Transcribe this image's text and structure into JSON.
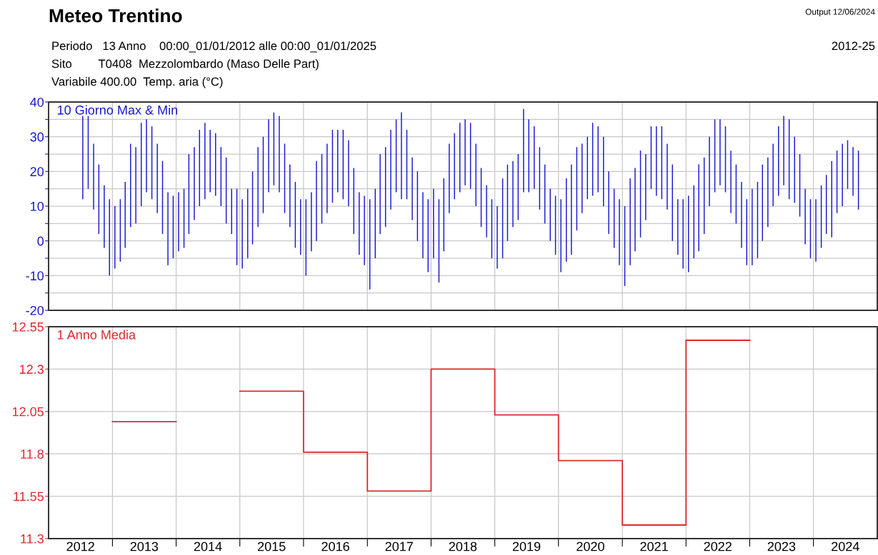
{
  "chart_data": [
    {
      "type": "bar",
      "title": "Meteo Trentino",
      "annotations": [
        "Output 12/06/2024",
        "2012-25",
        "Periodo   13 Anno    00:00_01/01/2012 alle 00:00_01/01/2025",
        "Sito        T0408  Mezzolombardo (Maso Delle Part)",
        "Variabile 400.00  Temp. aria (°C)"
      ],
      "x": [
        "2012-07-15",
        "2012-08-15",
        "2012-09-15",
        "2012-10-15",
        "2012-11-15",
        "2012-12-15",
        "2013-01-15",
        "2013-02-15",
        "2013-03-15",
        "2013-04-15",
        "2013-05-15",
        "2013-06-15",
        "2013-07-15",
        "2013-08-15",
        "2013-09-15",
        "2013-10-15",
        "2013-11-15",
        "2013-12-15",
        "2014-01-15",
        "2014-02-15",
        "2014-03-15",
        "2014-04-15",
        "2014-05-15",
        "2014-06-15",
        "2014-07-15",
        "2014-08-15",
        "2014-09-15",
        "2014-10-15",
        "2014-11-15",
        "2014-12-15",
        "2015-01-15",
        "2015-02-15",
        "2015-03-15",
        "2015-04-15",
        "2015-05-15",
        "2015-06-15",
        "2015-07-15",
        "2015-08-15",
        "2015-09-15",
        "2015-10-15",
        "2015-11-15",
        "2015-12-15",
        "2016-01-15",
        "2016-02-15",
        "2016-03-15",
        "2016-04-15",
        "2016-05-15",
        "2016-06-15",
        "2016-07-15",
        "2016-08-15",
        "2016-09-15",
        "2016-10-15",
        "2016-11-15",
        "2016-12-15",
        "2017-01-15",
        "2017-02-15",
        "2017-03-15",
        "2017-04-15",
        "2017-05-15",
        "2017-06-15",
        "2017-07-15",
        "2017-08-15",
        "2017-09-15",
        "2017-10-15",
        "2017-11-15",
        "2017-12-15",
        "2018-01-15",
        "2018-02-15",
        "2018-03-15",
        "2018-04-15",
        "2018-05-15",
        "2018-06-15",
        "2018-07-15",
        "2018-08-15",
        "2018-09-15",
        "2018-10-15",
        "2018-11-15",
        "2018-12-15",
        "2019-01-15",
        "2019-02-15",
        "2019-03-15",
        "2019-04-15",
        "2019-05-15",
        "2019-06-15",
        "2019-07-15",
        "2019-08-15",
        "2019-09-15",
        "2019-10-15",
        "2019-11-15",
        "2019-12-15",
        "2020-01-15",
        "2020-02-15",
        "2020-03-15",
        "2020-04-15",
        "2020-05-15",
        "2020-06-15",
        "2020-07-15",
        "2020-08-15",
        "2020-09-15",
        "2020-10-15",
        "2020-11-15",
        "2020-12-15",
        "2021-01-15",
        "2021-02-15",
        "2021-03-15",
        "2021-04-15",
        "2021-05-15",
        "2021-06-15",
        "2021-07-15",
        "2021-08-15",
        "2021-09-15",
        "2021-10-15",
        "2021-11-15",
        "2021-12-15",
        "2022-01-15",
        "2022-02-15",
        "2022-03-15",
        "2022-04-15",
        "2022-05-15",
        "2022-06-15",
        "2022-07-15",
        "2022-08-15",
        "2022-09-15",
        "2022-10-15",
        "2022-11-15",
        "2022-12-15",
        "2023-01-15",
        "2023-02-15",
        "2023-03-15",
        "2023-04-15",
        "2023-05-15",
        "2023-06-15",
        "2023-07-15",
        "2023-08-15",
        "2023-09-15",
        "2023-10-15",
        "2023-11-15",
        "2023-12-15",
        "2024-01-15",
        "2024-02-15",
        "2024-03-15",
        "2024-04-15",
        "2024-05-15",
        "2024-06-15",
        "2024-07-15",
        "2024-08-15",
        "2024-09-15"
      ],
      "series": [
        {
          "name": "10 Giorno Max & Min",
          "color": "#1a1ad0",
          "base": [
            12,
            15,
            9,
            2,
            -2,
            -10,
            -8,
            -6,
            -2,
            4,
            5,
            10,
            14,
            12,
            8,
            2,
            -7,
            -5,
            -3,
            -2,
            2,
            6,
            10,
            12,
            14,
            13,
            10,
            5,
            2,
            -7,
            -8,
            -5,
            -1,
            4,
            8,
            14,
            16,
            14,
            8,
            4,
            -2,
            -4,
            -10,
            -3,
            0,
            5,
            8,
            11,
            14,
            12,
            10,
            2,
            -4,
            -7,
            -14,
            -5,
            2,
            4,
            9,
            14,
            12,
            12,
            6,
            0,
            -5,
            -9,
            -5,
            -12,
            -3,
            8,
            12,
            14,
            16,
            15,
            10,
            4,
            1,
            -5,
            -8,
            -5,
            0,
            4,
            6,
            14,
            14,
            15,
            9,
            5,
            0,
            -4,
            -9,
            -6,
            -4,
            3,
            8,
            12,
            13,
            14,
            10,
            2,
            -2,
            -7,
            -13,
            -7,
            -3,
            1,
            6,
            15,
            13,
            12,
            9,
            0,
            -4,
            -8,
            -9,
            -5,
            -3,
            2,
            10,
            14,
            16,
            14,
            8,
            5,
            -2,
            -7,
            -7,
            -5,
            0,
            4,
            10,
            13,
            16,
            12,
            11,
            7,
            -1,
            -5,
            -6,
            -2,
            2,
            1,
            8,
            10,
            15,
            13,
            9
          ],
          "values": [
            24,
            21,
            19,
            20,
            18,
            22,
            18,
            18,
            19,
            24,
            22,
            24,
            21,
            21,
            20,
            21,
            21,
            18,
            17,
            17,
            23,
            21,
            22,
            22,
            18,
            18,
            17,
            19,
            13,
            22,
            20,
            20,
            21,
            23,
            22,
            21,
            21,
            22,
            20,
            18,
            19,
            16,
            22,
            17,
            23,
            20,
            20,
            21,
            18,
            20,
            19,
            19,
            18,
            20,
            26,
            20,
            23,
            23,
            23,
            21,
            25,
            20,
            18,
            20,
            19,
            21,
            20,
            24,
            21,
            20,
            19,
            20,
            19,
            19,
            18,
            17,
            15,
            17,
            18,
            23,
            22,
            19,
            19,
            24,
            21,
            18,
            18,
            17,
            15,
            17,
            21,
            24,
            26,
            24,
            20,
            18,
            21,
            19,
            20,
            18,
            17,
            19,
            23,
            25,
            24,
            25,
            19,
            18,
            20,
            21,
            19,
            22,
            16,
            20,
            22,
            21,
            25,
            22,
            20,
            21,
            19,
            19,
            18,
            17,
            19,
            19,
            22,
            22,
            22,
            20,
            18,
            20,
            20,
            23,
            19,
            18,
            16,
            17,
            18,
            18,
            17,
            22,
            18,
            18,
            14,
            14,
            17
          ]
        }
      ],
      "xlim": [
        "2012-01-01",
        "2025-01-01"
      ],
      "xticks": [
        {
          "value": "2013-01-01",
          "label": null
        },
        {
          "value": "2014-01-01",
          "label": null
        },
        {
          "value": "2015-01-01",
          "label": null
        },
        {
          "value": "2016-01-01",
          "label": null
        },
        {
          "value": "2017-01-01",
          "label": null
        },
        {
          "value": "2018-01-01",
          "label": null
        },
        {
          "value": "2019-01-01",
          "label": null
        },
        {
          "value": "2020-01-01",
          "label": null
        },
        {
          "value": "2021-01-01",
          "label": null
        },
        {
          "value": "2022-01-01",
          "label": null
        },
        {
          "value": "2023-01-01",
          "label": null
        },
        {
          "value": "2024-01-01",
          "label": null
        }
      ],
      "ylim": [
        -20,
        40
      ],
      "yticks": [
        -20,
        {
          "value": -15,
          "label": null
        },
        -10,
        {
          "value": -5,
          "label": null
        },
        0,
        {
          "value": 5,
          "label": null
        },
        10,
        {
          "value": 15,
          "label": null
        },
        20,
        {
          "value": 25,
          "label": null
        },
        30,
        {
          "value": 35,
          "label": null
        },
        40
      ],
      "grid": true,
      "tick_labels": "y"
    },
    {
      "type": "line",
      "series": [
        {
          "name": "1 Anno Media",
          "color": "#e0282e",
          "x": [
            "2013-01-01",
            "2014-01-01",
            "2014-07-02",
            "2015-01-01",
            "2016-01-01",
            "2016-01-01",
            "2017-01-01",
            "2017-01-01",
            "2018-01-01",
            "2018-01-01",
            "2019-01-01",
            "2019-01-01",
            "2020-01-01",
            "2020-01-01",
            "2021-01-01",
            "2021-01-01",
            "2022-01-01",
            "2022-01-01",
            "2023-01-01"
          ],
          "values": [
            11.99,
            11.99,
            null,
            12.17,
            12.17,
            11.81,
            11.81,
            11.58,
            11.58,
            12.3,
            12.3,
            12.03,
            12.03,
            11.76,
            11.76,
            11.38,
            11.38,
            12.47,
            12.47
          ]
        }
      ],
      "xlim": [
        "2012-01-01",
        "2025-01-01"
      ],
      "xticks": [
        {
          "value": "2013-01-01",
          "label": null
        },
        {
          "value": "2014-01-01",
          "label": null
        },
        {
          "value": "2015-01-01",
          "label": null
        },
        {
          "value": "2016-01-01",
          "label": null
        },
        {
          "value": "2017-01-01",
          "label": null
        },
        {
          "value": "2018-01-01",
          "label": null
        },
        {
          "value": "2019-01-01",
          "label": null
        },
        {
          "value": "2020-01-01",
          "label": null
        },
        {
          "value": "2021-01-01",
          "label": null
        },
        {
          "value": "2022-01-01",
          "label": null
        },
        {
          "value": "2023-01-01",
          "label": null
        },
        {
          "value": "2024-01-01",
          "label": null
        },
        {
          "value": "2012-07-02",
          "label": "2012"
        },
        {
          "value": "2013-07-02",
          "label": "2013"
        },
        {
          "value": "2014-07-02",
          "label": "2014"
        },
        {
          "value": "2015-07-02",
          "label": "2015"
        },
        {
          "value": "2016-07-02",
          "label": "2016"
        },
        {
          "value": "2017-07-02",
          "label": "2017"
        },
        {
          "value": "2018-07-02",
          "label": "2018"
        },
        {
          "value": "2019-07-02",
          "label": "2019"
        },
        {
          "value": "2020-07-02",
          "label": "2020"
        },
        {
          "value": "2021-07-02",
          "label": "2021"
        },
        {
          "value": "2022-07-02",
          "label": "2022"
        },
        {
          "value": "2023-07-02",
          "label": "2023"
        },
        {
          "value": "2024-07-02",
          "label": "2024"
        }
      ],
      "ylim": [
        11.3,
        12.55
      ],
      "yticks": [
        11.3,
        11.55,
        11.8,
        12.05,
        12.3,
        12.55
      ],
      "grid": true
    }
  ]
}
